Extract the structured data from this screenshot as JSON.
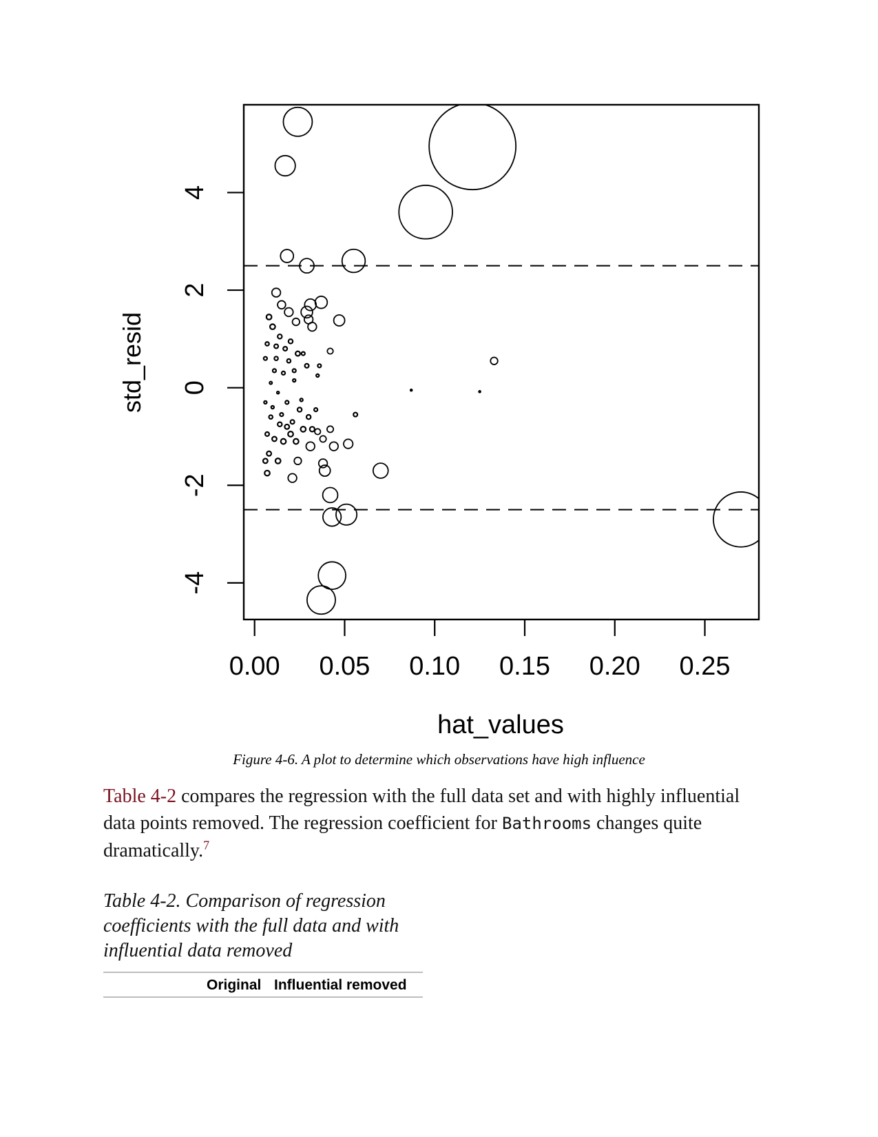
{
  "figure": {
    "caption": "Figure 4-6. A plot to determine which observations have high influence"
  },
  "chart_data": {
    "type": "scatter",
    "xlabel": "hat_values",
    "ylabel": "std_resid",
    "xlim": [
      -0.006,
      0.28
    ],
    "ylim": [
      -4.75,
      5.8
    ],
    "x_ticks": [
      "0.00",
      "0.05",
      "0.10",
      "0.15",
      "0.20",
      "0.25"
    ],
    "y_ticks": [
      "-4",
      "-2",
      "0",
      "2",
      "4"
    ],
    "reference_lines": [
      2.5,
      -2.5
    ],
    "marker_size_encodes": "cooks_distance",
    "points": [
      {
        "x": 0.024,
        "y": 5.45,
        "size": 1.0
      },
      {
        "x": 0.017,
        "y": 4.55,
        "size": 0.7
      },
      {
        "x": 0.121,
        "y": 4.95,
        "size": 3.0
      },
      {
        "x": 0.095,
        "y": 3.6,
        "size": 1.85
      },
      {
        "x": 0.018,
        "y": 2.7,
        "size": 0.45
      },
      {
        "x": 0.029,
        "y": 2.5,
        "size": 0.5
      },
      {
        "x": 0.055,
        "y": 2.6,
        "size": 0.8
      },
      {
        "x": 0.037,
        "y": 1.75,
        "size": 0.42
      },
      {
        "x": 0.031,
        "y": 1.7,
        "size": 0.4
      },
      {
        "x": 0.029,
        "y": 1.55,
        "size": 0.4
      },
      {
        "x": 0.047,
        "y": 1.38,
        "size": 0.38
      },
      {
        "x": 0.012,
        "y": 1.95,
        "size": 0.3
      },
      {
        "x": 0.015,
        "y": 1.7,
        "size": 0.28
      },
      {
        "x": 0.019,
        "y": 1.55,
        "size": 0.3
      },
      {
        "x": 0.03,
        "y": 1.4,
        "size": 0.3
      },
      {
        "x": 0.032,
        "y": 1.25,
        "size": 0.3
      },
      {
        "x": 0.023,
        "y": 1.35,
        "size": 0.25
      },
      {
        "x": 0.042,
        "y": 0.75,
        "size": 0.2
      },
      {
        "x": 0.133,
        "y": 0.55,
        "size": 0.25
      },
      {
        "x": 0.087,
        "y": -0.05,
        "size": 0.02
      },
      {
        "x": 0.125,
        "y": -0.08,
        "size": 0.01
      },
      {
        "x": 0.056,
        "y": -0.55,
        "size": 0.14
      },
      {
        "x": 0.035,
        "y": -0.9,
        "size": 0.2
      },
      {
        "x": 0.042,
        "y": -0.85,
        "size": 0.22
      },
      {
        "x": 0.038,
        "y": -1.05,
        "size": 0.22
      },
      {
        "x": 0.044,
        "y": -1.2,
        "size": 0.3
      },
      {
        "x": 0.052,
        "y": -1.15,
        "size": 0.32
      },
      {
        "x": 0.031,
        "y": -1.2,
        "size": 0.3
      },
      {
        "x": 0.038,
        "y": -1.55,
        "size": 0.3
      },
      {
        "x": 0.039,
        "y": -1.7,
        "size": 0.38
      },
      {
        "x": 0.07,
        "y": -1.7,
        "size": 0.52
      },
      {
        "x": 0.024,
        "y": -1.5,
        "size": 0.25
      },
      {
        "x": 0.021,
        "y": -1.85,
        "size": 0.3
      },
      {
        "x": 0.042,
        "y": -2.2,
        "size": 0.52
      },
      {
        "x": 0.043,
        "y": -2.65,
        "size": 0.63
      },
      {
        "x": 0.051,
        "y": -2.6,
        "size": 0.72
      },
      {
        "x": 0.27,
        "y": -2.7,
        "size": 1.9
      },
      {
        "x": 0.043,
        "y": -3.85,
        "size": 0.95
      },
      {
        "x": 0.037,
        "y": -4.35,
        "size": 0.98
      },
      {
        "x": 0.008,
        "y": 1.45,
        "size": 0.18
      },
      {
        "x": 0.01,
        "y": 1.25,
        "size": 0.18
      },
      {
        "x": 0.014,
        "y": 1.05,
        "size": 0.15
      },
      {
        "x": 0.02,
        "y": 0.95,
        "size": 0.15
      },
      {
        "x": 0.024,
        "y": 0.7,
        "size": 0.16
      },
      {
        "x": 0.029,
        "y": 0.45,
        "size": 0.14
      },
      {
        "x": 0.036,
        "y": 0.45,
        "size": 0.12
      },
      {
        "x": 0.007,
        "y": 0.9,
        "size": 0.13
      },
      {
        "x": 0.012,
        "y": 0.6,
        "size": 0.13
      },
      {
        "x": 0.016,
        "y": 0.3,
        "size": 0.12
      },
      {
        "x": 0.022,
        "y": 0.15,
        "size": 0.1
      },
      {
        "x": 0.009,
        "y": 0.1,
        "size": 0.09
      },
      {
        "x": 0.013,
        "y": -0.1,
        "size": 0.08
      },
      {
        "x": 0.018,
        "y": -0.3,
        "size": 0.12
      },
      {
        "x": 0.025,
        "y": -0.45,
        "size": 0.15
      },
      {
        "x": 0.03,
        "y": -0.6,
        "size": 0.15
      },
      {
        "x": 0.027,
        "y": -0.85,
        "size": 0.18
      },
      {
        "x": 0.02,
        "y": -0.95,
        "size": 0.18
      },
      {
        "x": 0.014,
        "y": -0.75,
        "size": 0.15
      },
      {
        "x": 0.009,
        "y": -0.6,
        "size": 0.13
      },
      {
        "x": 0.007,
        "y": -0.95,
        "size": 0.14
      },
      {
        "x": 0.011,
        "y": -1.05,
        "size": 0.16
      },
      {
        "x": 0.016,
        "y": -1.1,
        "size": 0.18
      },
      {
        "x": 0.023,
        "y": -1.1,
        "size": 0.18
      },
      {
        "x": 0.008,
        "y": -1.35,
        "size": 0.16
      },
      {
        "x": 0.013,
        "y": -1.5,
        "size": 0.18
      },
      {
        "x": 0.007,
        "y": -1.75,
        "size": 0.18
      },
      {
        "x": 0.006,
        "y": -1.5,
        "size": 0.16
      },
      {
        "x": 0.034,
        "y": -0.45,
        "size": 0.12
      },
      {
        "x": 0.035,
        "y": 0.25,
        "size": 0.1
      },
      {
        "x": 0.027,
        "y": 0.7,
        "size": 0.12
      },
      {
        "x": 0.019,
        "y": 0.55,
        "size": 0.13
      },
      {
        "x": 0.011,
        "y": 0.35,
        "size": 0.12
      },
      {
        "x": 0.006,
        "y": 0.6,
        "size": 0.12
      },
      {
        "x": 0.006,
        "y": -0.3,
        "size": 0.1
      },
      {
        "x": 0.01,
        "y": -0.4,
        "size": 0.1
      },
      {
        "x": 0.015,
        "y": -0.55,
        "size": 0.12
      },
      {
        "x": 0.021,
        "y": -0.7,
        "size": 0.14
      },
      {
        "x": 0.026,
        "y": -0.25,
        "size": 0.1
      },
      {
        "x": 0.017,
        "y": 0.8,
        "size": 0.14
      },
      {
        "x": 0.022,
        "y": 0.35,
        "size": 0.12
      },
      {
        "x": 0.012,
        "y": 0.85,
        "size": 0.14
      },
      {
        "x": 0.032,
        "y": -0.85,
        "size": 0.17
      },
      {
        "x": 0.018,
        "y": -0.8,
        "size": 0.16
      }
    ]
  },
  "body": {
    "table_ref": "Table 4-2",
    "text_1": " compares the regression with the full data set and with highly influential data points removed. The regression coefficient for ",
    "code": "Bathrooms",
    "text_2": " changes quite dramatically.",
    "footnote": "7"
  },
  "table": {
    "caption": "Table 4-2. Comparison of regression coefficients with the full data and with influential data removed",
    "headers": [
      "Original",
      "Influential removed"
    ]
  }
}
